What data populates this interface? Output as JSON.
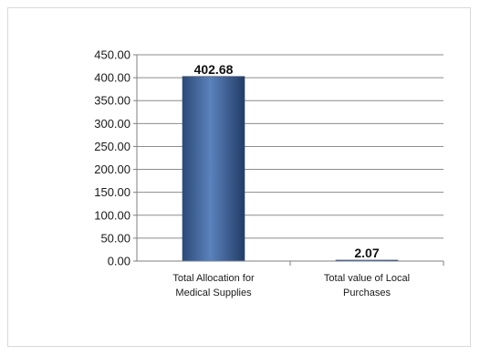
{
  "chart_data": {
    "type": "bar",
    "categories": [
      [
        "Total Allocation for",
        "Medical Supplies"
      ],
      [
        "Total value of Local",
        "Purchases"
      ]
    ],
    "values": [
      402.68,
      2.07
    ],
    "data_labels": [
      "402.68",
      "2.07"
    ],
    "ylim": [
      0,
      450
    ],
    "yticks": [
      "0.00",
      "50.00",
      "100.00",
      "150.00",
      "200.00",
      "250.00",
      "300.00",
      "350.00",
      "400.00",
      "450.00"
    ],
    "grid": true,
    "bar_color": "#3a5f95",
    "title": "",
    "xlabel": "",
    "ylabel": ""
  }
}
